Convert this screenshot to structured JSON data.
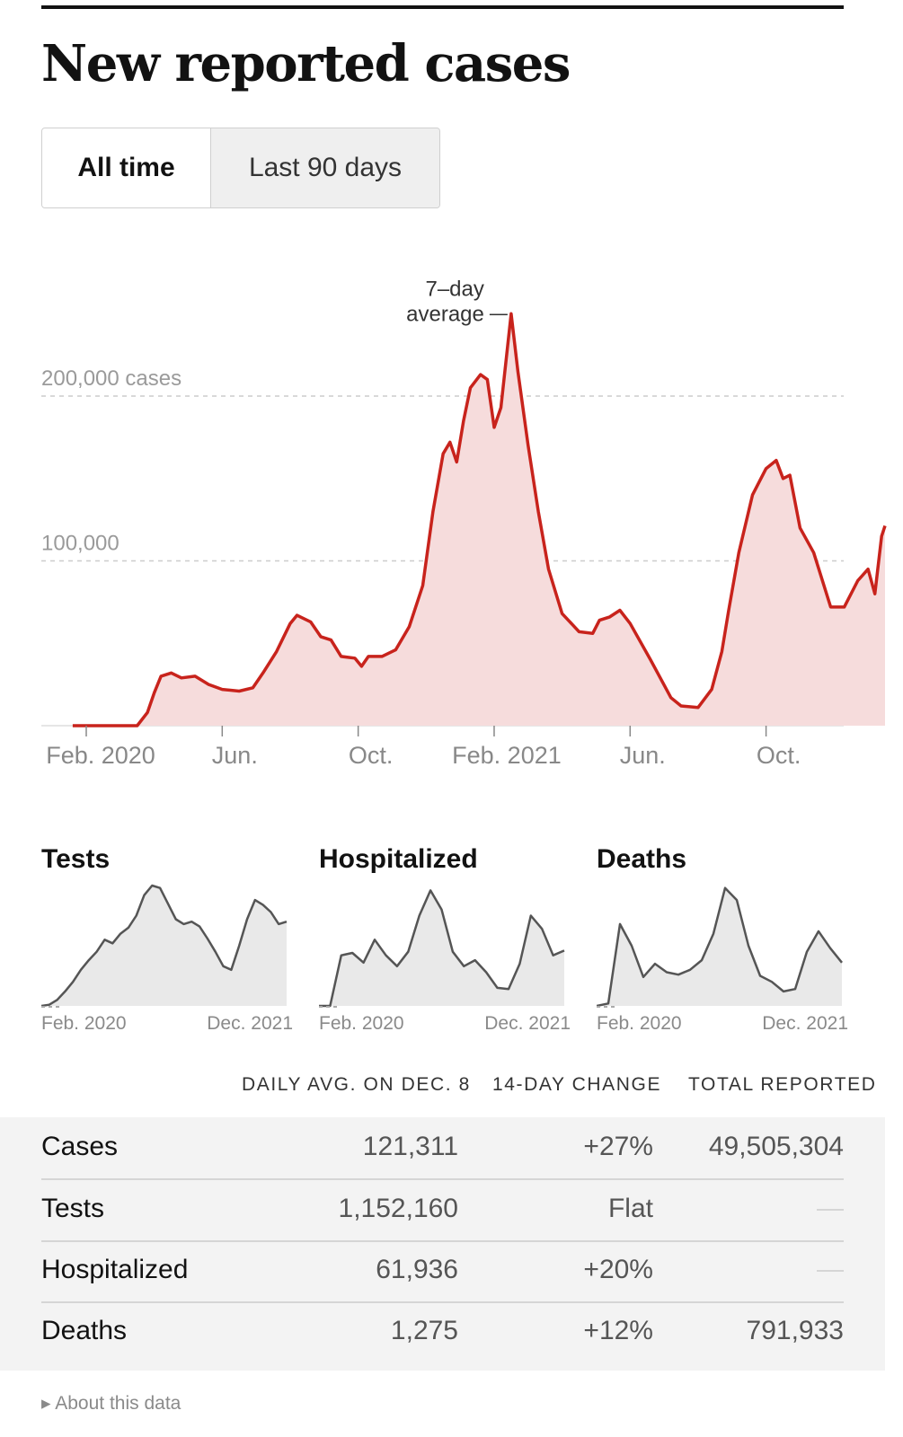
{
  "header": {
    "title": "New reported cases"
  },
  "toggle": {
    "options": [
      "All time",
      "Last 90 days"
    ],
    "selected": "All time"
  },
  "colors": {
    "accent": "#c8231c",
    "fill": "#f6dcdc",
    "mini_line": "#555555",
    "mini_fill": "#e9e9e9"
  },
  "chart_data": [
    {
      "type": "area",
      "title": "New reported cases",
      "annotation": "7–day average",
      "annotation_lines": [
        "7–day",
        "average"
      ],
      "ylabels": [
        "200,000 cases",
        "100,000"
      ],
      "yticks": [
        200000,
        100000
      ],
      "ylim": [
        0,
        250000
      ],
      "xlim": [
        0,
        22.6
      ],
      "xticks": [
        0,
        4,
        8,
        12,
        16,
        20
      ],
      "xtick_labels": [
        "Feb. 2020",
        "Jun.",
        "Oct.",
        "Feb. 2021",
        "Jun.",
        "Oct."
      ],
      "x_unit": "months since Feb. 2020",
      "series": [
        {
          "name": "7-day average",
          "points": [
            [
              -0.4,
              0
            ],
            [
              1.5,
              0
            ],
            [
              1.8,
              8000
            ],
            [
              2.0,
              20000
            ],
            [
              2.2,
              30000
            ],
            [
              2.5,
              32000
            ],
            [
              2.8,
              29000
            ],
            [
              3.2,
              30000
            ],
            [
              3.6,
              25000
            ],
            [
              4.0,
              22000
            ],
            [
              4.5,
              21000
            ],
            [
              4.9,
              23000
            ],
            [
              5.2,
              32000
            ],
            [
              5.6,
              45000
            ],
            [
              6.0,
              62000
            ],
            [
              6.2,
              67000
            ],
            [
              6.6,
              63000
            ],
            [
              6.9,
              54000
            ],
            [
              7.2,
              52000
            ],
            [
              7.5,
              42000
            ],
            [
              7.9,
              41000
            ],
            [
              8.1,
              36000
            ],
            [
              8.3,
              42000
            ],
            [
              8.7,
              42000
            ],
            [
              9.1,
              46000
            ],
            [
              9.5,
              60000
            ],
            [
              9.9,
              85000
            ],
            [
              10.2,
              130000
            ],
            [
              10.5,
              165000
            ],
            [
              10.7,
              172000
            ],
            [
              10.9,
              160000
            ],
            [
              11.1,
              185000
            ],
            [
              11.3,
              205000
            ],
            [
              11.6,
              213000
            ],
            [
              11.8,
              210000
            ],
            [
              12.0,
              181000
            ],
            [
              12.2,
              193000
            ],
            [
              12.5,
              250000
            ],
            [
              12.7,
              215000
            ],
            [
              13.0,
              170000
            ],
            [
              13.3,
              130000
            ],
            [
              13.6,
              95000
            ],
            [
              14.0,
              68000
            ],
            [
              14.5,
              57000
            ],
            [
              14.9,
              56000
            ],
            [
              15.1,
              64000
            ],
            [
              15.4,
              66000
            ],
            [
              15.7,
              70000
            ],
            [
              16.0,
              62000
            ],
            [
              16.6,
              40000
            ],
            [
              17.2,
              17000
            ],
            [
              17.5,
              12000
            ],
            [
              18.0,
              11000
            ],
            [
              18.4,
              22000
            ],
            [
              18.7,
              45000
            ],
            [
              18.9,
              70000
            ],
            [
              19.2,
              105000
            ],
            [
              19.6,
              140000
            ],
            [
              20.0,
              156000
            ],
            [
              20.3,
              161000
            ],
            [
              20.5,
              150000
            ],
            [
              20.7,
              152000
            ],
            [
              21.0,
              120000
            ],
            [
              21.4,
              105000
            ],
            [
              21.9,
              72000
            ],
            [
              22.3,
              72000
            ],
            [
              22.7,
              88000
            ],
            [
              23.0,
              95000
            ],
            [
              23.2,
              80000
            ],
            [
              23.4,
              115000
            ],
            [
              23.5,
              121311
            ]
          ]
        }
      ]
    },
    {
      "type": "area",
      "title": "Tests",
      "xtick_labels": [
        "Feb. 2020",
        "Dec. 2021"
      ],
      "ylim": [
        0,
        1.0
      ],
      "series": [
        {
          "name": "Tests",
          "values": [
            0.0,
            0.01,
            0.05,
            0.12,
            0.2,
            0.3,
            0.38,
            0.45,
            0.55,
            0.52,
            0.6,
            0.65,
            0.75,
            0.92,
            1.0,
            0.98,
            0.85,
            0.72,
            0.68,
            0.7,
            0.66,
            0.56,
            0.45,
            0.33,
            0.3,
            0.5,
            0.72,
            0.88,
            0.84,
            0.78,
            0.68,
            0.7
          ]
        }
      ]
    },
    {
      "type": "area",
      "title": "Hospitalized",
      "xtick_labels": [
        "Feb. 2020",
        "Dec. 2021"
      ],
      "ylim": [
        0,
        1.0
      ],
      "series": [
        {
          "name": "Hospitalized",
          "values": [
            0.0,
            0.0,
            0.42,
            0.44,
            0.36,
            0.55,
            0.42,
            0.33,
            0.45,
            0.75,
            0.96,
            0.8,
            0.45,
            0.33,
            0.38,
            0.28,
            0.15,
            0.14,
            0.35,
            0.75,
            0.64,
            0.42,
            0.46
          ]
        }
      ]
    },
    {
      "type": "area",
      "title": "Deaths",
      "xtick_labels": [
        "Feb. 2020",
        "Dec. 2021"
      ],
      "ylim": [
        0,
        1.0
      ],
      "series": [
        {
          "name": "Deaths",
          "values": [
            0.0,
            0.02,
            0.68,
            0.5,
            0.24,
            0.35,
            0.28,
            0.26,
            0.3,
            0.38,
            0.6,
            0.98,
            0.88,
            0.5,
            0.25,
            0.2,
            0.12,
            0.14,
            0.45,
            0.62,
            0.48,
            0.36
          ]
        }
      ]
    }
  ],
  "table": {
    "headers": [
      "DAILY AVG. ON DEC. 8",
      "14-DAY CHANGE",
      "TOTAL REPORTED"
    ],
    "rows": [
      {
        "name": "Cases",
        "daily_avg": "121,311",
        "change": "+27%",
        "total": "49,505,304"
      },
      {
        "name": "Tests",
        "daily_avg": "1,152,160",
        "change": "Flat",
        "total": "—"
      },
      {
        "name": "Hospitalized",
        "daily_avg": "61,936",
        "change": "+20%",
        "total": "—"
      },
      {
        "name": "Deaths",
        "daily_avg": "1,275",
        "change": "+12%",
        "total": "791,933"
      }
    ]
  },
  "footer": {
    "about": "About this data",
    "about_icon": "triangle-right-icon"
  }
}
